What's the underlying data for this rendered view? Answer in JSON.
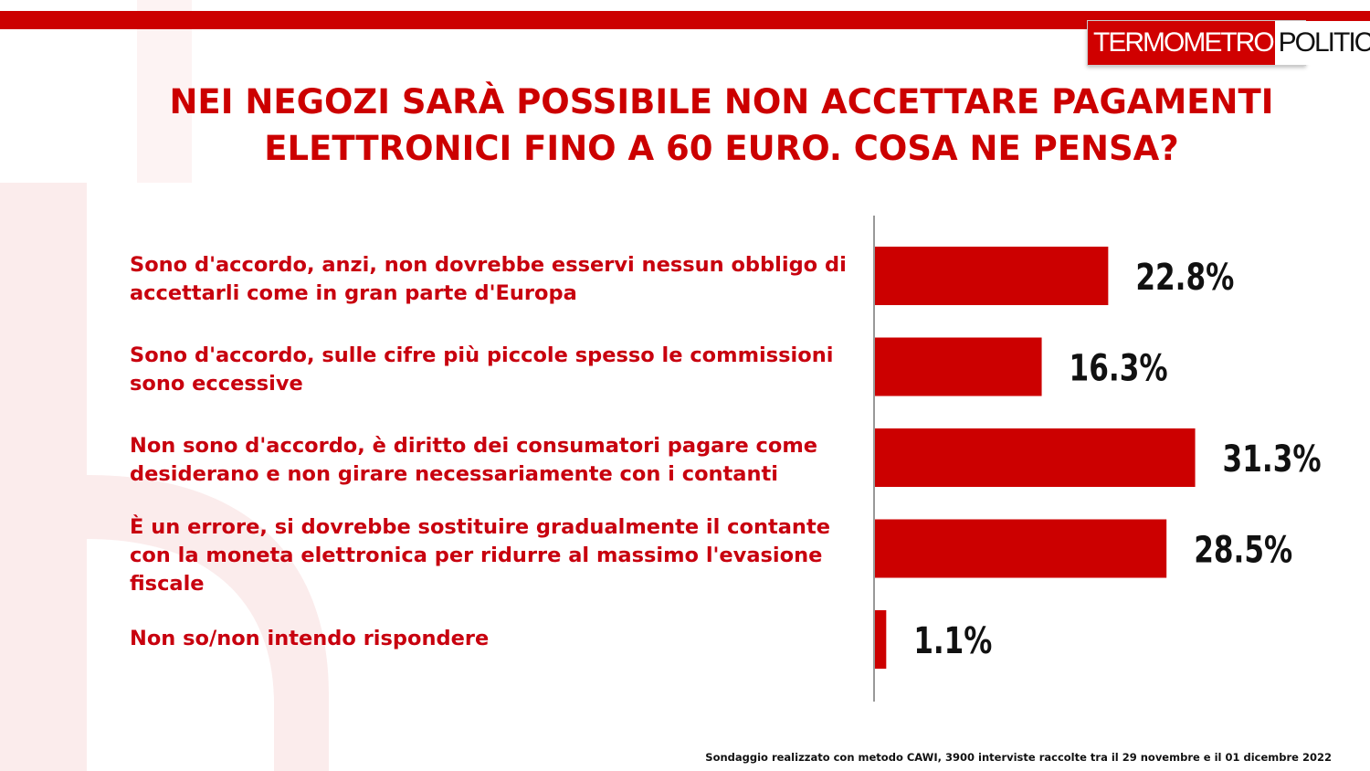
{
  "brand": {
    "logo_part1": "TERMOMETRO",
    "logo_part2": "POLITICO",
    "accent_color": "#cc0000"
  },
  "title_lines": [
    "NEI NEGOZI SARÀ POSSIBILE NON ACCETTARE PAGAMENTI",
    "ELETTRONICI FINO A 60 EURO. COSA NE PENSA?"
  ],
  "chart_data": {
    "type": "bar",
    "orientation": "horizontal",
    "title": "NEI NEGOZI SARÀ POSSIBILE NON ACCETTARE PAGAMENTI ELETTRONICI FINO A 60 EURO. COSA NE PENSA?",
    "categories": [
      "Sono d'accordo, anzi, non dovrebbe esservi nessun obbligo di accettarli come in gran parte d'Europa",
      "Sono d'accordo, sulle cifre più piccole spesso le commissioni sono eccessive",
      "Non sono d'accordo, è diritto dei consumatori pagare come desiderano e non girare necessariamente con i contanti",
      "È un errore, si dovrebbe sostituire gradualmente il contante con la moneta elettronica per ridurre al massimo l'evasione fiscale",
      "Non so/non intendo rispondere"
    ],
    "values": [
      22.8,
      16.3,
      31.3,
      28.5,
      1.1
    ],
    "value_labels": [
      "22.8%",
      "16.3%",
      "31.3%",
      "28.5%",
      "1.1%"
    ],
    "unit": "%",
    "bar_color": "#cc0000",
    "grid": false,
    "legend": "none"
  },
  "footnote": "Sondaggio realizzato con metodo CAWI, 3900 interviste raccolte tra il 29 novembre e il 01 dicembre 2022"
}
